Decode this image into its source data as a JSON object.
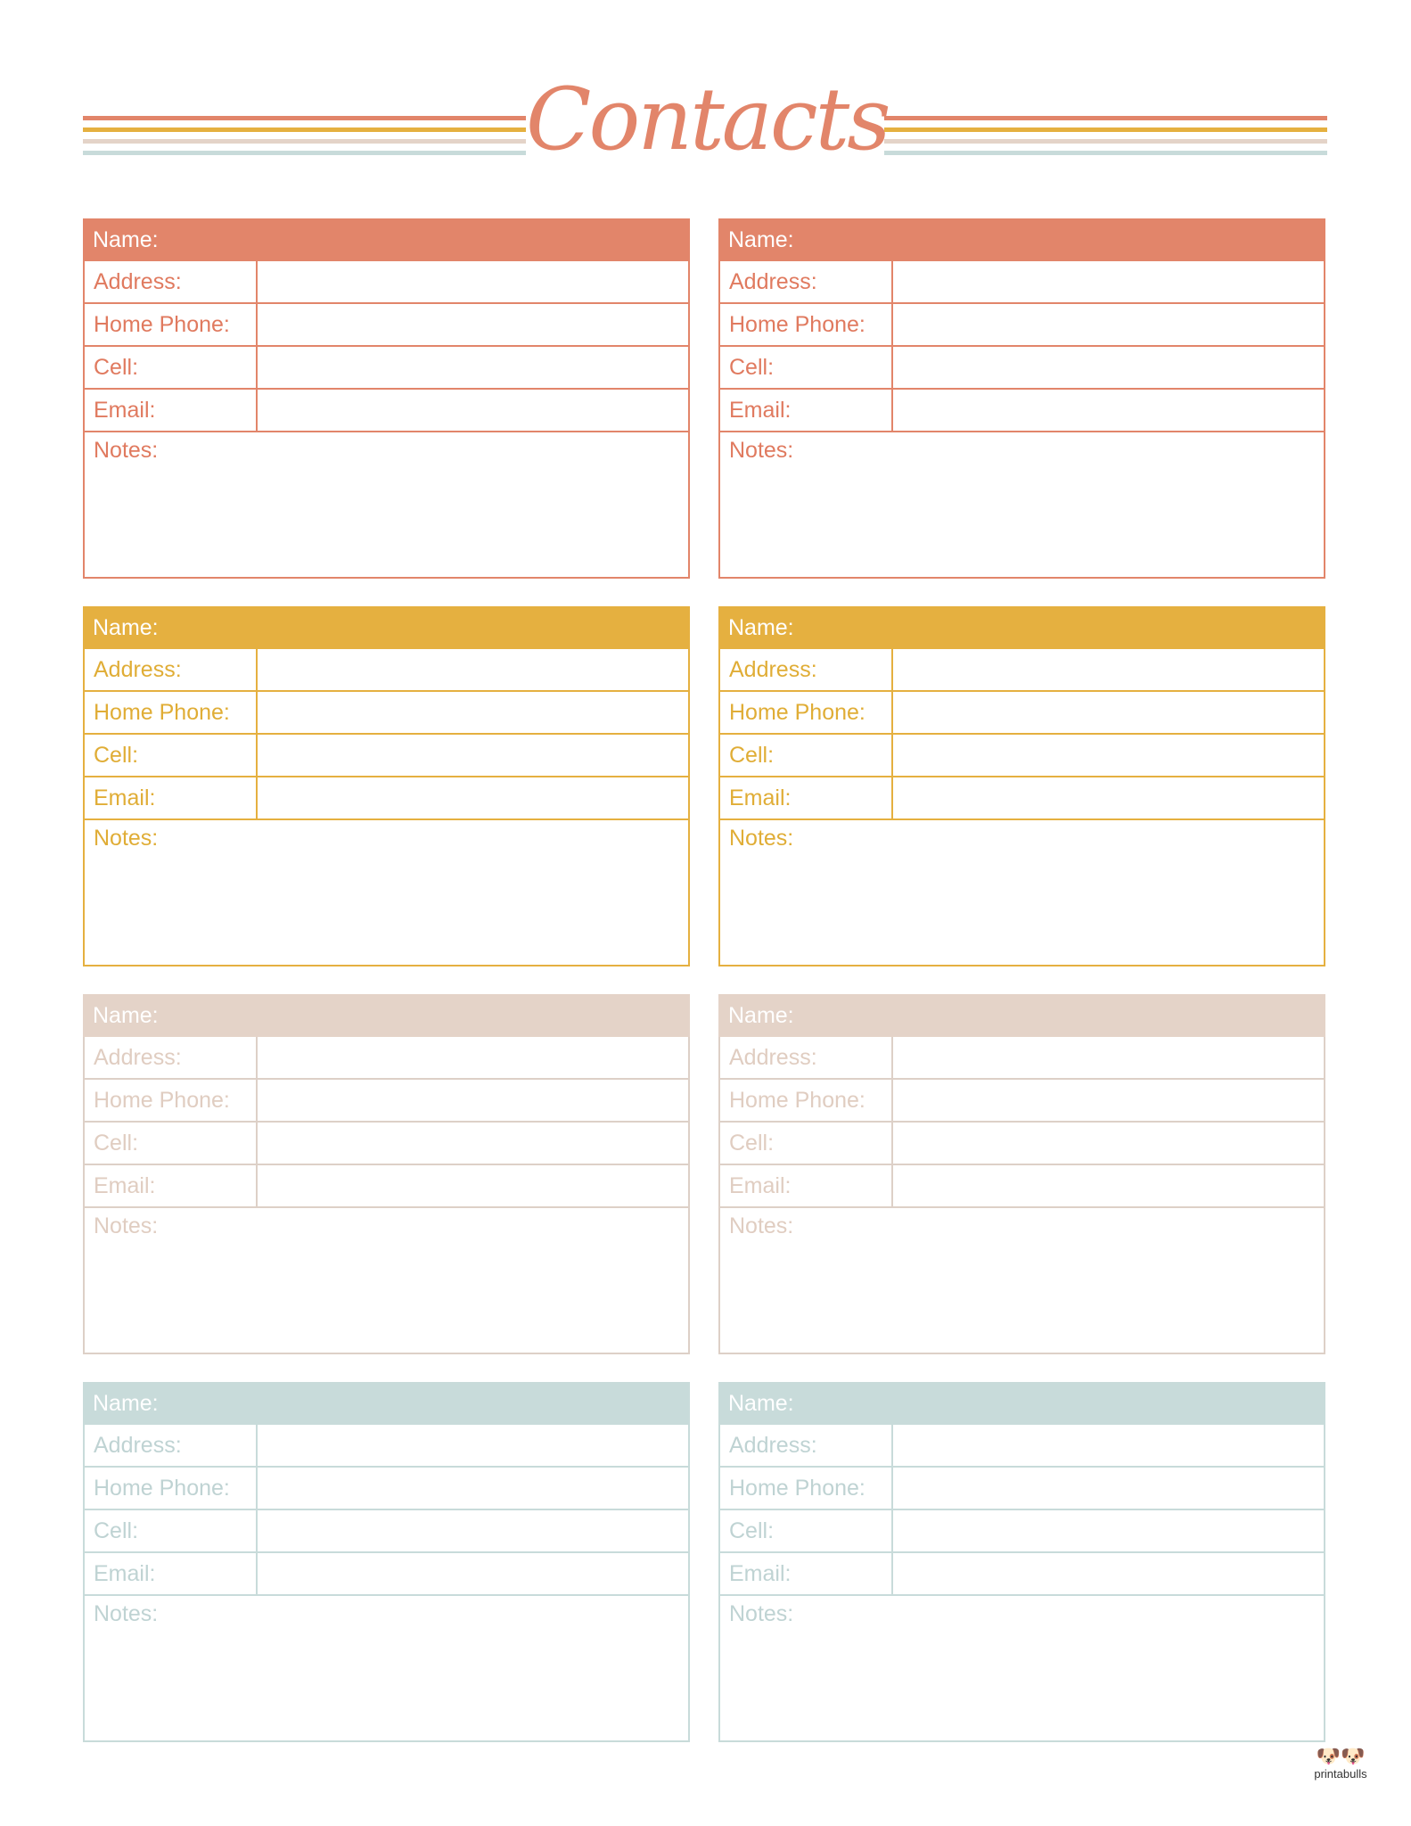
{
  "title": "Contacts",
  "line_colors": [
    "#e2856a",
    "#e5b040",
    "#e4d3c8",
    "#c8dbda"
  ],
  "labels": {
    "name": "Name:",
    "address": "Address:",
    "home_phone": "Home Phone:",
    "cell": "Cell:",
    "email": "Email:",
    "notes": "Notes:"
  },
  "card_themes": [
    {
      "header": "#e2856a",
      "border": "#e2856a",
      "text": "#e07a5f"
    },
    {
      "header": "#e5b040",
      "border": "#e5b040",
      "text": "#e0ad36"
    },
    {
      "header": "#e4d3c8",
      "border": "#ddd0c7",
      "text": "#e0cdc1"
    },
    {
      "header": "#c8dbda",
      "border": "#c8dbda",
      "text": "#bfd3d3"
    }
  ],
  "logo": {
    "text": "printabulls"
  }
}
